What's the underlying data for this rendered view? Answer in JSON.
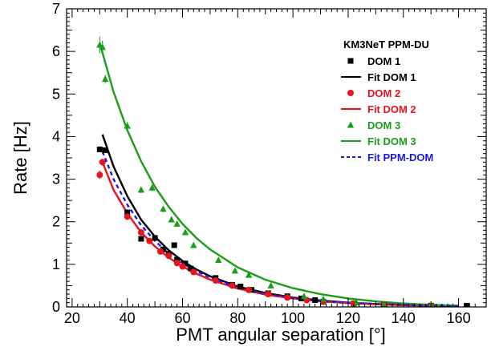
{
  "chart_data": {
    "type": "scatter",
    "title": "",
    "xlabel": "PMT angular separation [°]",
    "ylabel": "Rate [Hz]",
    "xlim": [
      18,
      170
    ],
    "ylim": [
      0,
      7
    ],
    "x_ticks": [
      20,
      40,
      60,
      80,
      100,
      120,
      140,
      160
    ],
    "y_ticks": [
      0,
      1,
      2,
      3,
      4,
      5,
      6,
      7
    ],
    "grid": false,
    "legend": {
      "title": "KM3NeT PPM-DU",
      "placement": "top-right",
      "entries": [
        {
          "label": "DOM 1",
          "kind": "marker",
          "marker": "square",
          "color": "#000000"
        },
        {
          "label": "Fit DOM 1",
          "kind": "line",
          "dash": "solid",
          "color": "#000000"
        },
        {
          "label": "DOM 2",
          "kind": "marker",
          "marker": "circle",
          "color": "#e8141c"
        },
        {
          "label": "Fit DOM 2",
          "kind": "line",
          "dash": "solid",
          "color": "#e8141c"
        },
        {
          "label": "DOM 3",
          "kind": "marker",
          "marker": "triangle",
          "color": "#1a9e1a"
        },
        {
          "label": "Fit DOM 3",
          "kind": "line",
          "dash": "solid",
          "color": "#1a9e1a"
        },
        {
          "label": "Fit PPM-DOM",
          "kind": "line",
          "dash": "dashed",
          "color": "#1a1ae6"
        }
      ]
    },
    "series": [
      {
        "name": "DOM 1",
        "kind": "points",
        "marker": "square",
        "color": "#000000",
        "x": [
          30,
          32,
          40,
          45,
          50,
          53,
          55,
          57,
          58,
          61,
          63,
          72,
          78,
          81,
          85,
          91,
          98,
          103,
          108,
          111,
          122,
          133,
          150,
          163
        ],
        "y": [
          3.7,
          3.68,
          2.22,
          1.6,
          1.62,
          1.35,
          1.25,
          1.45,
          1.1,
          1.02,
          0.9,
          0.68,
          0.52,
          0.48,
          0.4,
          0.32,
          0.25,
          0.2,
          0.16,
          0.12,
          0.08,
          0.05,
          0.03,
          0.03
        ],
        "yerr": [
          0.06,
          0.06,
          0.05,
          0.05,
          0.05,
          0.05,
          0.04,
          0.04,
          0.04,
          0.04,
          0.04,
          0.03,
          0.03,
          0.03,
          0.03,
          0.02,
          0.02,
          0.02,
          0.02,
          0.02,
          0.02,
          0.02,
          0.01,
          0.01
        ]
      },
      {
        "name": "DOM 2",
        "kind": "points",
        "marker": "circle",
        "color": "#e8141c",
        "x": [
          30,
          31,
          40,
          45,
          48,
          52,
          55,
          58,
          60,
          64,
          72,
          78,
          84,
          91,
          98,
          105,
          111,
          122,
          133,
          150
        ],
        "y": [
          3.1,
          3.4,
          2.12,
          1.75,
          1.55,
          1.3,
          1.2,
          1.03,
          0.95,
          0.82,
          0.62,
          0.5,
          0.4,
          0.3,
          0.22,
          0.16,
          0.12,
          0.08,
          0.05,
          0.02
        ],
        "yerr": [
          0.1,
          0.08,
          0.08,
          0.07,
          0.06,
          0.06,
          0.05,
          0.05,
          0.05,
          0.04,
          0.04,
          0.03,
          0.03,
          0.03,
          0.02,
          0.02,
          0.02,
          0.02,
          0.01,
          0.01
        ]
      },
      {
        "name": "DOM 3",
        "kind": "points",
        "marker": "triangle",
        "color": "#1a9e1a",
        "x": [
          30,
          31,
          32,
          40,
          45,
          49,
          53,
          56,
          58,
          61,
          64,
          73,
          79,
          84,
          92,
          104,
          111,
          123,
          133,
          150
        ],
        "y": [
          6.15,
          6.1,
          5.35,
          4.25,
          2.75,
          2.8,
          2.3,
          2.05,
          1.95,
          1.75,
          1.45,
          1.1,
          0.85,
          0.75,
          0.5,
          0.25,
          0.18,
          0.1,
          0.05,
          0.03
        ],
        "yerr": [
          0.2,
          0.15,
          0.1,
          0.1,
          0.08,
          0.08,
          0.07,
          0.07,
          0.06,
          0.06,
          0.05,
          0.05,
          0.04,
          0.04,
          0.03,
          0.02,
          0.02,
          0.02,
          0.01,
          0.01
        ]
      },
      {
        "name": "Fit DOM 1",
        "kind": "line",
        "dash": "solid",
        "color": "#000000",
        "x": [
          31,
          35,
          40,
          45,
          50,
          55,
          60,
          65,
          70,
          80,
          90,
          100,
          110,
          120,
          130,
          140,
          150,
          160
        ],
        "y": [
          4.05,
          3.3,
          2.6,
          2.05,
          1.65,
          1.33,
          1.08,
          0.88,
          0.72,
          0.48,
          0.33,
          0.22,
          0.15,
          0.1,
          0.07,
          0.05,
          0.03,
          0.02
        ]
      },
      {
        "name": "Fit DOM 2",
        "kind": "line",
        "dash": "solid",
        "color": "#e8141c",
        "x": [
          31,
          35,
          40,
          45,
          50,
          55,
          60,
          65,
          70,
          80,
          90,
          100,
          110,
          120,
          130,
          140,
          150,
          160
        ],
        "y": [
          3.4,
          2.75,
          2.2,
          1.75,
          1.42,
          1.16,
          0.95,
          0.78,
          0.64,
          0.43,
          0.29,
          0.2,
          0.13,
          0.09,
          0.06,
          0.04,
          0.03,
          0.02
        ]
      },
      {
        "name": "Fit DOM 3",
        "kind": "line",
        "dash": "solid",
        "color": "#1a9e1a",
        "x": [
          30,
          35,
          40,
          45,
          50,
          55,
          60,
          65,
          70,
          80,
          90,
          100,
          110,
          120,
          130,
          140,
          150,
          160
        ],
        "y": [
          6.2,
          5.05,
          4.15,
          3.42,
          2.82,
          2.35,
          1.95,
          1.62,
          1.35,
          0.93,
          0.64,
          0.44,
          0.3,
          0.2,
          0.13,
          0.08,
          0.05,
          0.03
        ]
      },
      {
        "name": "Fit PPM-DOM",
        "kind": "line",
        "dash": "dashed",
        "color": "#1a1ae6",
        "x": [
          31,
          35,
          40,
          45,
          50,
          55,
          60,
          65,
          70,
          80,
          90,
          100,
          110,
          120,
          130,
          140,
          150,
          160
        ],
        "y": [
          3.65,
          3.0,
          2.4,
          1.92,
          1.55,
          1.26,
          1.03,
          0.84,
          0.69,
          0.46,
          0.31,
          0.21,
          0.14,
          0.1,
          0.07,
          0.05,
          0.03,
          0.02
        ]
      }
    ]
  }
}
